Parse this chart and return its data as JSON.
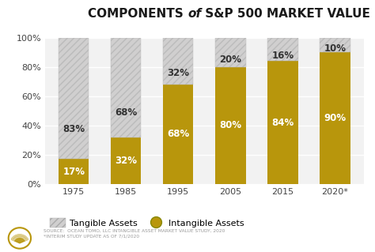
{
  "categories": [
    "1975",
    "1985",
    "1995",
    "2005",
    "2015",
    "2020*"
  ],
  "intangible": [
    17,
    32,
    68,
    80,
    84,
    90
  ],
  "tangible": [
    83,
    68,
    32,
    20,
    16,
    10
  ],
  "intangible_color": "#B8960C",
  "tangible_color": "#D0CFCF",
  "background_color": "#FFFFFF",
  "plot_bg_color": "#F2F2F2",
  "label_fontsize": 8.5,
  "tick_fontsize": 8,
  "intangible_label_color": "#FFFFFF",
  "tangible_label_color": "#333333",
  "source_text": "SOURCE:  OCEAN TOMO, LLC INTANGIBLE ASSET MARKET VALUE STUDY, 2020\n*INTERIM STUDY UPDATE AS OF 7/1/2020",
  "legend_tangible": "Tangible Assets",
  "legend_intangible": "Intangible Assets",
  "yticks": [
    0,
    20,
    40,
    60,
    80,
    100
  ],
  "ytick_labels": [
    "0%",
    "20%",
    "40%",
    "60%",
    "80%",
    "100%"
  ]
}
